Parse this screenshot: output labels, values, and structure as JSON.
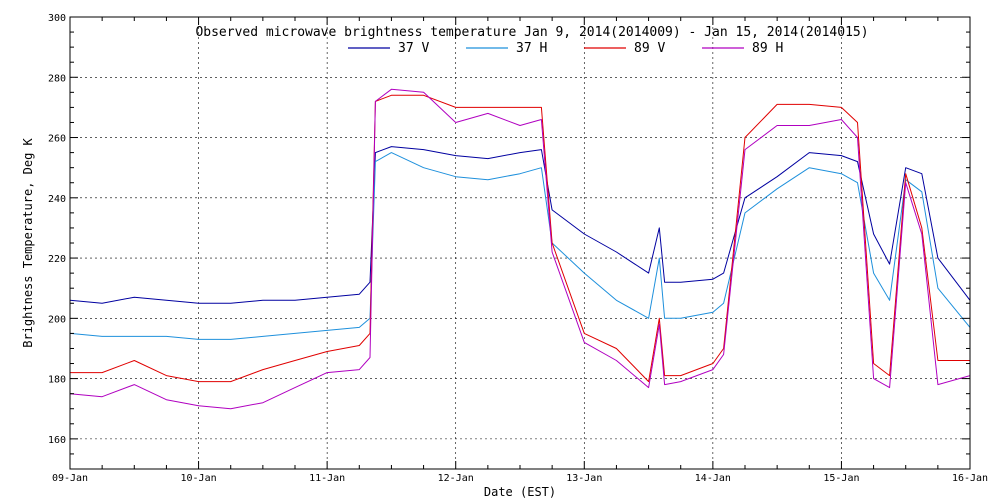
{
  "chart_data": {
    "type": "line",
    "title": "Observed microwave brightness temperature Jan  9, 2014(2014009) - Jan 15, 2014(2014015)",
    "xlabel": "Date (EST)",
    "ylabel": "Brightness Temperature, Deg K",
    "xlim": [
      "2014-01-09",
      "2014-01-16"
    ],
    "ylim": [
      150,
      300
    ],
    "x_ticks": [
      "09-Jan",
      "10-Jan",
      "11-Jan",
      "12-Jan",
      "13-Jan",
      "14-Jan",
      "15-Jan",
      "16-Jan"
    ],
    "y_ticks": [
      160,
      180,
      200,
      220,
      240,
      260,
      280,
      300
    ],
    "grid": true,
    "legend_position": "top",
    "series": [
      {
        "name": "37 V",
        "color": "#0000a0",
        "x": [
          "2014-01-09T00:00",
          "2014-01-09T06:00",
          "2014-01-09T12:00",
          "2014-01-09T18:00",
          "2014-01-10T00:00",
          "2014-01-10T06:00",
          "2014-01-10T12:00",
          "2014-01-10T18:00",
          "2014-01-11T00:00",
          "2014-01-11T06:00",
          "2014-01-11T08:00",
          "2014-01-11T09:00",
          "2014-01-11T12:00",
          "2014-01-11T18:00",
          "2014-01-12T00:00",
          "2014-01-12T06:00",
          "2014-01-12T12:00",
          "2014-01-12T16:00",
          "2014-01-12T18:00",
          "2014-01-13T00:00",
          "2014-01-13T06:00",
          "2014-01-13T12:00",
          "2014-01-13T14:00",
          "2014-01-13T15:00",
          "2014-01-13T18:00",
          "2014-01-14T00:00",
          "2014-01-14T02:00",
          "2014-01-14T06:00",
          "2014-01-14T12:00",
          "2014-01-14T18:00",
          "2014-01-15T00:00",
          "2014-01-15T03:00",
          "2014-01-15T06:00",
          "2014-01-15T09:00",
          "2014-01-15T12:00",
          "2014-01-15T15:00",
          "2014-01-15T18:00",
          "2014-01-16T00:00"
        ],
        "y": [
          206,
          205,
          207,
          206,
          205,
          205,
          206,
          206,
          207,
          208,
          212,
          255,
          257,
          256,
          254,
          253,
          255,
          256,
          236,
          228,
          222,
          215,
          230,
          212,
          212,
          213,
          215,
          240,
          247,
          255,
          254,
          252,
          228,
          218,
          250,
          248,
          220,
          206
        ]
      },
      {
        "name": "37 H",
        "color": "#1e90dc",
        "x": [
          "2014-01-09T00:00",
          "2014-01-09T06:00",
          "2014-01-09T12:00",
          "2014-01-09T18:00",
          "2014-01-10T00:00",
          "2014-01-10T06:00",
          "2014-01-10T12:00",
          "2014-01-10T18:00",
          "2014-01-11T00:00",
          "2014-01-11T06:00",
          "2014-01-11T08:00",
          "2014-01-11T09:00",
          "2014-01-11T12:00",
          "2014-01-11T18:00",
          "2014-01-12T00:00",
          "2014-01-12T06:00",
          "2014-01-12T12:00",
          "2014-01-12T16:00",
          "2014-01-12T18:00",
          "2014-01-13T00:00",
          "2014-01-13T06:00",
          "2014-01-13T12:00",
          "2014-01-13T14:00",
          "2014-01-13T15:00",
          "2014-01-13T18:00",
          "2014-01-14T00:00",
          "2014-01-14T02:00",
          "2014-01-14T06:00",
          "2014-01-14T12:00",
          "2014-01-14T18:00",
          "2014-01-15T00:00",
          "2014-01-15T03:00",
          "2014-01-15T06:00",
          "2014-01-15T09:00",
          "2014-01-15T12:00",
          "2014-01-15T15:00",
          "2014-01-15T18:00",
          "2014-01-16T00:00"
        ],
        "y": [
          195,
          194,
          194,
          194,
          193,
          193,
          194,
          195,
          196,
          197,
          200,
          252,
          255,
          250,
          247,
          246,
          248,
          250,
          225,
          215,
          206,
          200,
          220,
          200,
          200,
          202,
          205,
          235,
          243,
          250,
          248,
          245,
          215,
          206,
          246,
          242,
          210,
          197
        ]
      },
      {
        "name": "89 V",
        "color": "#e00000",
        "x": [
          "2014-01-09T00:00",
          "2014-01-09T06:00",
          "2014-01-09T12:00",
          "2014-01-09T18:00",
          "2014-01-10T00:00",
          "2014-01-10T06:00",
          "2014-01-10T12:00",
          "2014-01-10T18:00",
          "2014-01-11T00:00",
          "2014-01-11T06:00",
          "2014-01-11T08:00",
          "2014-01-11T09:00",
          "2014-01-11T12:00",
          "2014-01-11T18:00",
          "2014-01-12T00:00",
          "2014-01-12T06:00",
          "2014-01-12T12:00",
          "2014-01-12T16:00",
          "2014-01-12T18:00",
          "2014-01-13T00:00",
          "2014-01-13T06:00",
          "2014-01-13T12:00",
          "2014-01-13T14:00",
          "2014-01-13T15:00",
          "2014-01-13T18:00",
          "2014-01-14T00:00",
          "2014-01-14T02:00",
          "2014-01-14T06:00",
          "2014-01-14T12:00",
          "2014-01-14T18:00",
          "2014-01-15T00:00",
          "2014-01-15T03:00",
          "2014-01-15T06:00",
          "2014-01-15T09:00",
          "2014-01-15T12:00",
          "2014-01-15T15:00",
          "2014-01-15T18:00",
          "2014-01-16T00:00"
        ],
        "y": [
          182,
          182,
          186,
          181,
          179,
          179,
          183,
          186,
          189,
          191,
          195,
          272,
          274,
          274,
          270,
          270,
          270,
          270,
          225,
          195,
          190,
          179,
          200,
          181,
          181,
          185,
          190,
          260,
          271,
          271,
          270,
          265,
          185,
          181,
          248,
          230,
          186,
          186
        ]
      },
      {
        "name": "89 H",
        "color": "#b000c0",
        "x": [
          "2014-01-09T00:00",
          "2014-01-09T06:00",
          "2014-01-09T12:00",
          "2014-01-09T18:00",
          "2014-01-10T00:00",
          "2014-01-10T06:00",
          "2014-01-10T12:00",
          "2014-01-10T18:00",
          "2014-01-11T00:00",
          "2014-01-11T06:00",
          "2014-01-11T08:00",
          "2014-01-11T09:00",
          "2014-01-11T12:00",
          "2014-01-11T18:00",
          "2014-01-12T00:00",
          "2014-01-12T06:00",
          "2014-01-12T12:00",
          "2014-01-12T16:00",
          "2014-01-12T18:00",
          "2014-01-13T00:00",
          "2014-01-13T06:00",
          "2014-01-13T12:00",
          "2014-01-13T14:00",
          "2014-01-13T15:00",
          "2014-01-13T18:00",
          "2014-01-14T00:00",
          "2014-01-14T02:00",
          "2014-01-14T06:00",
          "2014-01-14T12:00",
          "2014-01-14T18:00",
          "2014-01-15T00:00",
          "2014-01-15T03:00",
          "2014-01-15T06:00",
          "2014-01-15T09:00",
          "2014-01-15T12:00",
          "2014-01-15T15:00",
          "2014-01-15T18:00",
          "2014-01-16T00:00"
        ],
        "y": [
          175,
          174,
          178,
          173,
          171,
          170,
          172,
          177,
          182,
          183,
          187,
          272,
          276,
          275,
          265,
          268,
          264,
          266,
          222,
          192,
          186,
          177,
          198,
          178,
          179,
          183,
          188,
          256,
          264,
          264,
          266,
          260,
          180,
          177,
          245,
          228,
          178,
          181
        ]
      }
    ]
  }
}
